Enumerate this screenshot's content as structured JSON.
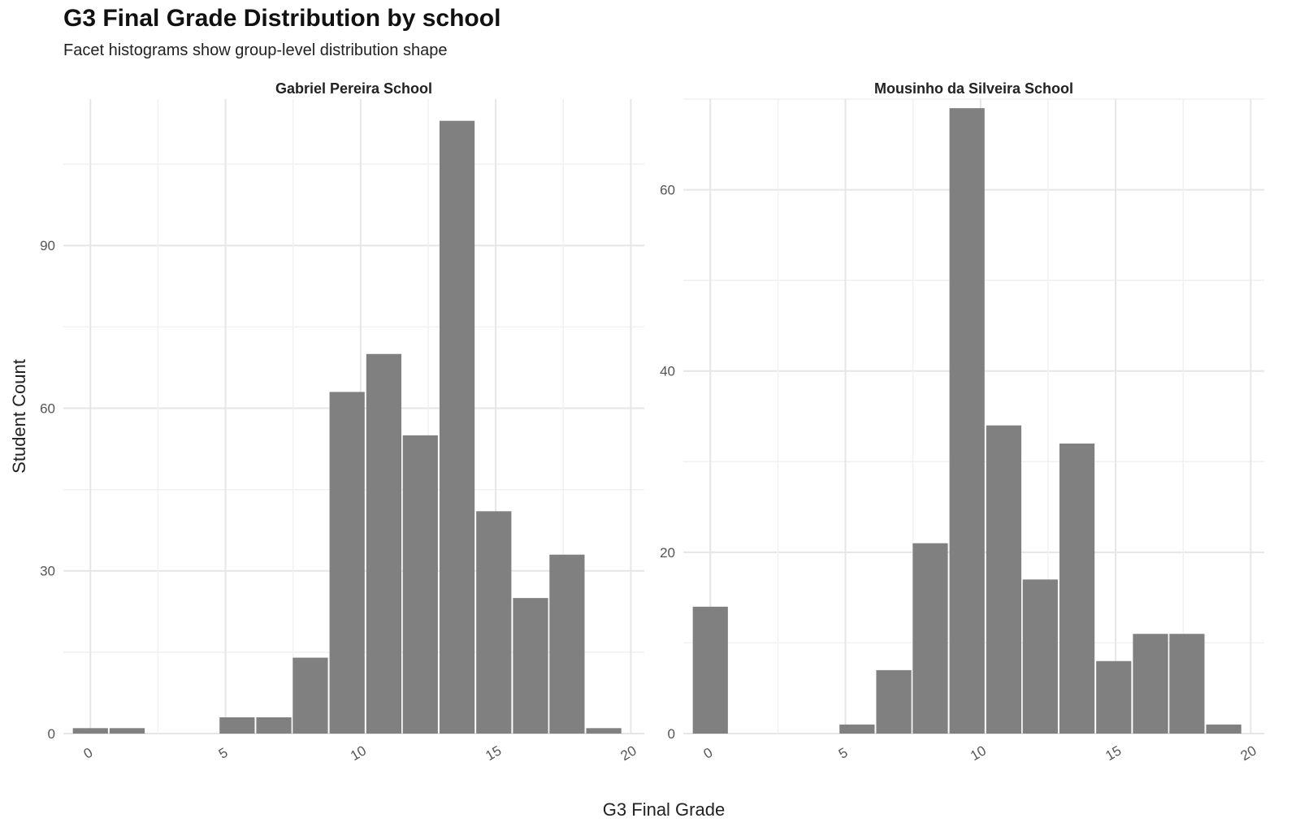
{
  "title": "G3 Final Grade Distribution by school",
  "subtitle": "Facet histograms show group-level distribution shape",
  "chart_data": {
    "type": "bar",
    "title": "G3 Final Grade Distribution by school",
    "subtitle": "Facet histograms show group-level distribution shape",
    "xlabel": "G3 Final Grade",
    "ylabel": "Student Count",
    "bin_width": 1.36,
    "grid": true,
    "legend": "none",
    "bar_color": "#808080",
    "x_ticks": [
      "0",
      "5",
      "10",
      "15",
      "20"
    ],
    "xlim": [
      -1.0,
      20.5
    ],
    "facets": [
      {
        "name": "Gabriel Pereira School",
        "ylim": [
          0,
          117
        ],
        "y_ticks": [
          0,
          30,
          60,
          90
        ],
        "bin_centers": [
          0.0,
          1.36,
          2.71,
          4.07,
          5.43,
          6.79,
          8.14,
          9.5,
          10.86,
          12.21,
          13.57,
          14.93,
          16.29,
          17.64,
          19.0
        ],
        "values": [
          1,
          1,
          0,
          0,
          3,
          3,
          14,
          63,
          70,
          55,
          113,
          41,
          25,
          33,
          1
        ]
      },
      {
        "name": "Mousinho da Silveira School",
        "ylim": [
          0,
          70
        ],
        "y_ticks": [
          0,
          20,
          40,
          60
        ],
        "bin_centers": [
          0.0,
          1.36,
          2.71,
          4.07,
          5.43,
          6.79,
          8.14,
          9.5,
          10.86,
          12.21,
          13.57,
          14.93,
          16.29,
          17.64,
          19.0
        ],
        "values": [
          14,
          0,
          0,
          0,
          1,
          7,
          21,
          69,
          34,
          17,
          32,
          8,
          11,
          11,
          1
        ]
      }
    ]
  }
}
